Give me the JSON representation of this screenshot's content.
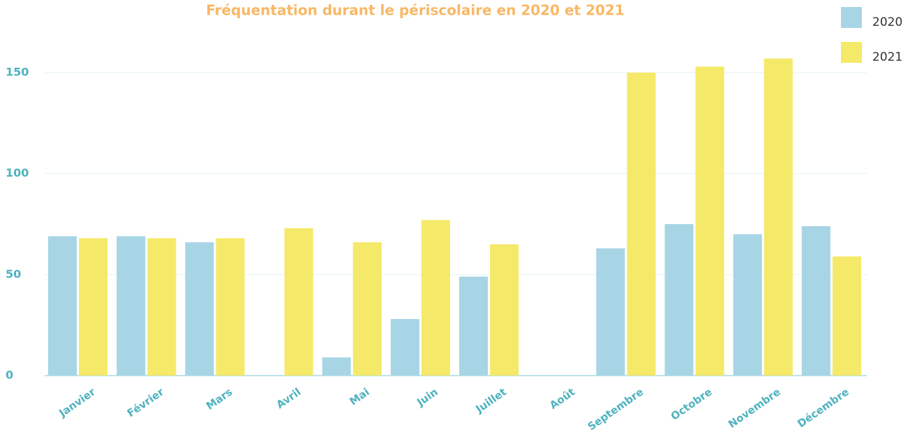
{
  "chart_data": {
    "type": "bar",
    "title": "Fréquentation durant le périscolaire en 2020 et 2021",
    "categories": [
      "Janvier",
      "Février",
      "Mars",
      "Avril",
      "Mai",
      "Juin",
      "Juillet",
      "Août",
      "Septembre",
      "Octobre",
      "Novembre",
      "Décembre"
    ],
    "series": [
      {
        "name": "2020",
        "color": "#a8d5e5",
        "values": [
          69,
          69,
          66,
          0,
          9,
          28,
          49,
          0,
          63,
          75,
          70,
          74
        ]
      },
      {
        "name": "2021",
        "color": "#f5e96a",
        "values": [
          68,
          68,
          68,
          73,
          66,
          77,
          65,
          0,
          150,
          153,
          157,
          59
        ]
      }
    ],
    "ylim": [
      0,
      165
    ],
    "yticks": [
      0,
      50,
      100,
      150
    ],
    "grid": true,
    "legend": "top-right"
  }
}
